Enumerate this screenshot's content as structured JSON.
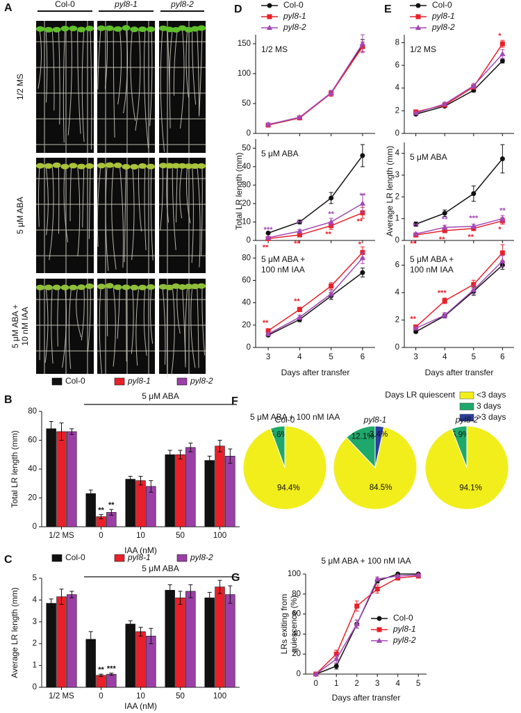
{
  "panel_a": {
    "label": "A",
    "columns": [
      {
        "name": "Col-0"
      },
      {
        "name": "pyl8-1",
        "italic": true
      },
      {
        "name": "pyl8-2",
        "italic": true
      }
    ],
    "rows": [
      [
        "1/2 MS"
      ],
      [
        "5 μM ABA"
      ],
      [
        "5 μM ABA +",
        "10 nM IAA"
      ]
    ]
  },
  "chart_data": [
    {
      "type": "bar",
      "label": "B",
      "bracket_label": "5 μM ABA",
      "categories": [
        "1/2 MS",
        "0",
        "10",
        "50",
        "100"
      ],
      "series": [
        {
          "name": "Col-0",
          "color": "#111111",
          "values": [
            68,
            23,
            33,
            50,
            46
          ],
          "errors": [
            5,
            2.5,
            2,
            3,
            3
          ]
        },
        {
          "name": "pyl8-1",
          "color": "#e8202a",
          "italic": true,
          "values": [
            66,
            7,
            32,
            50,
            56
          ],
          "errors": [
            6,
            1.5,
            3,
            3,
            4
          ],
          "significance": [
            null,
            "**",
            null,
            null,
            null
          ]
        },
        {
          "name": "pyl8-2",
          "color": "#9b3fa6",
          "italic": true,
          "values": [
            66,
            10,
            28,
            55,
            49
          ],
          "errors": [
            2,
            2,
            4,
            3,
            5
          ],
          "significance": [
            null,
            "**",
            null,
            null,
            null
          ]
        }
      ],
      "ylim": [
        0,
        80
      ],
      "yticks": [
        0,
        20,
        40,
        60,
        80
      ],
      "xlabel": "IAA (nM)",
      "ylabel": "Total LR length (mm)"
    },
    {
      "type": "bar",
      "label": "C",
      "bracket_label": "5 μM ABA",
      "categories": [
        "1/2 MS",
        "0",
        "10",
        "50",
        "100"
      ],
      "series": [
        {
          "name": "Col-0",
          "color": "#111111",
          "values": [
            3.85,
            2.2,
            2.9,
            4.45,
            4.1
          ],
          "errors": [
            0.2,
            0.35,
            0.15,
            0.25,
            0.25
          ]
        },
        {
          "name": "pyl8-1",
          "color": "#e8202a",
          "italic": true,
          "values": [
            4.15,
            0.55,
            2.55,
            4.1,
            4.6
          ],
          "errors": [
            0.35,
            0.05,
            0.2,
            0.3,
            0.3
          ],
          "significance": [
            null,
            "**",
            null,
            null,
            null
          ]
        },
        {
          "name": "pyl8-2",
          "color": "#9b3fa6",
          "italic": true,
          "values": [
            4.25,
            0.6,
            2.35,
            4.4,
            4.25
          ],
          "errors": [
            0.15,
            0.05,
            0.35,
            0.3,
            0.4
          ],
          "significance": [
            null,
            "***",
            null,
            null,
            null
          ]
        }
      ],
      "ylim": [
        0,
        5
      ],
      "yticks": [
        0,
        1,
        2,
        3,
        4,
        5
      ],
      "xlabel": "IAA (nM)",
      "ylabel": "Average LR length (mm)"
    },
    {
      "type": "line",
      "label": "D",
      "legend_loc": "above",
      "legend": [
        {
          "name": "Col-0",
          "color": "#111111",
          "marker": "circle"
        },
        {
          "name": "pyl8-1",
          "color": "#e8202a",
          "marker": "square",
          "italic": true
        },
        {
          "name": "pyl8-2",
          "color": "#a348b5",
          "marker": "triangle",
          "italic": true
        }
      ],
      "x": [
        3,
        4,
        5,
        6
      ],
      "xlim": [
        2.6,
        6.4
      ],
      "xticks": [
        3,
        4,
        5,
        6
      ],
      "xlabel": "Days after transfer",
      "ylabel": "Total LR length (mm)",
      "subplots": [
        {
          "annotation": [
            "1/2 MS"
          ],
          "ylim": [
            0,
            165
          ],
          "yticks": [
            0,
            50,
            100,
            150
          ],
          "series": [
            {
              "values": [
                14,
                26,
                68,
                147
              ],
              "errors": [
                2,
                2,
                4,
                10
              ]
            },
            {
              "values": [
                14,
                26,
                67,
                145
              ],
              "errors": [
                2,
                2,
                5,
                8
              ]
            },
            {
              "values": [
                15,
                27,
                68,
                150
              ],
              "errors": [
                2,
                2,
                4,
                15
              ]
            }
          ]
        },
        {
          "annotation": [
            "5 μM ABA"
          ],
          "ylim": [
            0,
            55
          ],
          "yticks": [
            0,
            10,
            20,
            30,
            40,
            50
          ],
          "series": [
            {
              "values": [
                4,
                10,
                23,
                46
              ],
              "errors": [
                0.5,
                1,
                3,
                6
              ]
            },
            {
              "values": [
                1,
                3,
                8,
                15
              ],
              "errors": [
                0.5,
                0.5,
                2,
                3
              ],
              "significance": [
                "**",
                "**",
                "**",
                "**"
              ]
            },
            {
              "values": [
                1.5,
                5,
                10,
                20
              ],
              "errors": [
                0.5,
                1,
                2,
                5
              ],
              "significance": [
                "***",
                "**",
                "**",
                "**"
              ]
            }
          ]
        },
        {
          "annotation": [
            "5 μM ABA +",
            "100 nM IAA"
          ],
          "ylim": [
            0,
            92
          ],
          "yticks": [
            0,
            20,
            40,
            60,
            80
          ],
          "series": [
            {
              "values": [
                11,
                25,
                46,
                67
              ],
              "errors": [
                1,
                2,
                3,
                4
              ]
            },
            {
              "values": [
                15,
                34,
                55,
                85
              ],
              "errors": [
                1,
                2,
                3,
                5
              ],
              "significance": [
                "**",
                "**",
                null,
                "*"
              ]
            },
            {
              "values": [
                12,
                27,
                48,
                80
              ],
              "errors": [
                1,
                2,
                3,
                5
              ]
            }
          ]
        }
      ]
    },
    {
      "type": "line",
      "label": "E",
      "legend_loc": "above",
      "legend": [
        {
          "name": "Col-0",
          "color": "#111111",
          "marker": "circle"
        },
        {
          "name": "pyl8-1",
          "color": "#e8202a",
          "marker": "square",
          "italic": true
        },
        {
          "name": "pyl8-2",
          "color": "#a348b5",
          "marker": "triangle",
          "italic": true
        }
      ],
      "x": [
        3,
        4,
        5,
        6
      ],
      "xlim": [
        2.6,
        6.4
      ],
      "xticks": [
        3,
        4,
        5,
        6
      ],
      "xlabel": "Days after transfer",
      "ylabel": "Average LR length (mm)",
      "subplots": [
        {
          "annotation": [
            "1/2 MS"
          ],
          "ylim": [
            0,
            8.7
          ],
          "yticks": [
            0,
            2,
            4,
            6,
            8
          ],
          "series": [
            {
              "values": [
                1.7,
                2.4,
                3.8,
                6.4
              ],
              "errors": [
                0.1,
                0.1,
                0.15,
                0.2
              ]
            },
            {
              "values": [
                1.9,
                2.5,
                4.1,
                7.9
              ],
              "errors": [
                0.15,
                0.15,
                0.2,
                0.3
              ],
              "significance": [
                null,
                null,
                null,
                "*"
              ]
            },
            {
              "values": [
                1.8,
                2.6,
                4.2,
                7.0
              ],
              "errors": [
                0.1,
                0.15,
                0.2,
                0.4
              ]
            }
          ]
        },
        {
          "annotation": [
            "5 μM ABA"
          ],
          "ylim": [
            0,
            4.5
          ],
          "yticks": [
            0,
            1,
            2,
            3,
            4
          ],
          "series": [
            {
              "values": [
                0.75,
                1.25,
                2.15,
                3.75
              ],
              "errors": [
                0.1,
                0.15,
                0.35,
                0.65
              ]
            },
            {
              "values": [
                0.25,
                0.45,
                0.55,
                0.9
              ],
              "errors": [
                0.05,
                0.1,
                0.1,
                0.15
              ],
              "significance": [
                "**",
                "**",
                "**",
                "*"
              ]
            },
            {
              "values": [
                0.3,
                0.6,
                0.65,
                1.0
              ],
              "errors": [
                0.05,
                0.1,
                0.1,
                0.15
              ],
              "significance": [
                "**",
                "**",
                "***",
                "**"
              ]
            }
          ]
        },
        {
          "annotation": [
            "5 μM ABA +",
            "100 nM IAA"
          ],
          "ylim": [
            0,
            7.5
          ],
          "yticks": [
            0,
            2,
            4,
            6
          ],
          "series": [
            {
              "values": [
                1.15,
                2.3,
                4.1,
                6.0
              ],
              "errors": [
                0.1,
                0.15,
                0.3,
                0.3
              ]
            },
            {
              "values": [
                1.5,
                3.4,
                4.6,
                6.9
              ],
              "errors": [
                0.1,
                0.2,
                0.3,
                0.6
              ],
              "significance": [
                "**",
                "***",
                null,
                null
              ]
            },
            {
              "values": [
                1.4,
                2.35,
                4.2,
                6.3
              ],
              "errors": [
                0.1,
                0.2,
                0.3,
                0.4
              ]
            }
          ]
        }
      ]
    },
    {
      "type": "pie",
      "label": "F",
      "title": "5 μM ABA + 100 nM IAA",
      "legend_title": "Days LR quiescent",
      "categories": [
        "<3 days",
        "3 days",
        ">3 days"
      ],
      "colors": [
        "#f2ee1c",
        "#1fa86b",
        "#2b3f9e"
      ],
      "pies": [
        {
          "name": "Col-0",
          "values": [
            94.4,
            5.6,
            0
          ],
          "value_labels": [
            "94.4%",
            "5.6%",
            null
          ]
        },
        {
          "name": "pyl8-1",
          "italic": true,
          "values": [
            84.5,
            12.1,
            3.4
          ],
          "value_labels": [
            "84.5%",
            "12.1%",
            "3.4%"
          ]
        },
        {
          "name": "pyl8-2",
          "italic": true,
          "values": [
            94.1,
            5.9,
            0
          ],
          "value_labels": [
            "94.1%",
            "5.9%",
            null
          ]
        }
      ]
    },
    {
      "type": "line",
      "label": "G",
      "title": "5 μM ABA + 100 nM IAA",
      "legend_loc": "lower right",
      "legend": [
        {
          "name": "Col-0",
          "color": "#111111",
          "marker": "circle"
        },
        {
          "name": "pyl8-1",
          "color": "#e8202a",
          "marker": "square",
          "italic": true
        },
        {
          "name": "pyl8-2",
          "color": "#a348b5",
          "marker": "triangle",
          "italic": true
        }
      ],
      "x": [
        0,
        1,
        2,
        3,
        4,
        5
      ],
      "xlim": [
        -0.5,
        5.4
      ],
      "xticks": [
        0,
        1,
        2,
        3,
        4,
        5
      ],
      "xlabel": "Days after transfer",
      "ylabel": [
        "LRs exiting from",
        "quiescence (%)"
      ],
      "subplots": [
        {
          "ylim": [
            0,
            100
          ],
          "yticks": [
            0,
            20,
            40,
            60,
            80,
            100
          ],
          "series": [
            {
              "values": [
                0,
                8,
                50,
                93,
                100,
                100
              ],
              "errors": [
                0,
                3,
                4,
                2,
                1,
                1
              ]
            },
            {
              "values": [
                0,
                20,
                68,
                85,
                96,
                98
              ],
              "errors": [
                0,
                4,
                5,
                4,
                2,
                2
              ]
            },
            {
              "values": [
                0,
                15,
                50,
                95,
                98,
                99
              ],
              "errors": [
                0,
                4,
                4,
                2,
                1,
                1
              ]
            }
          ]
        }
      ]
    }
  ]
}
